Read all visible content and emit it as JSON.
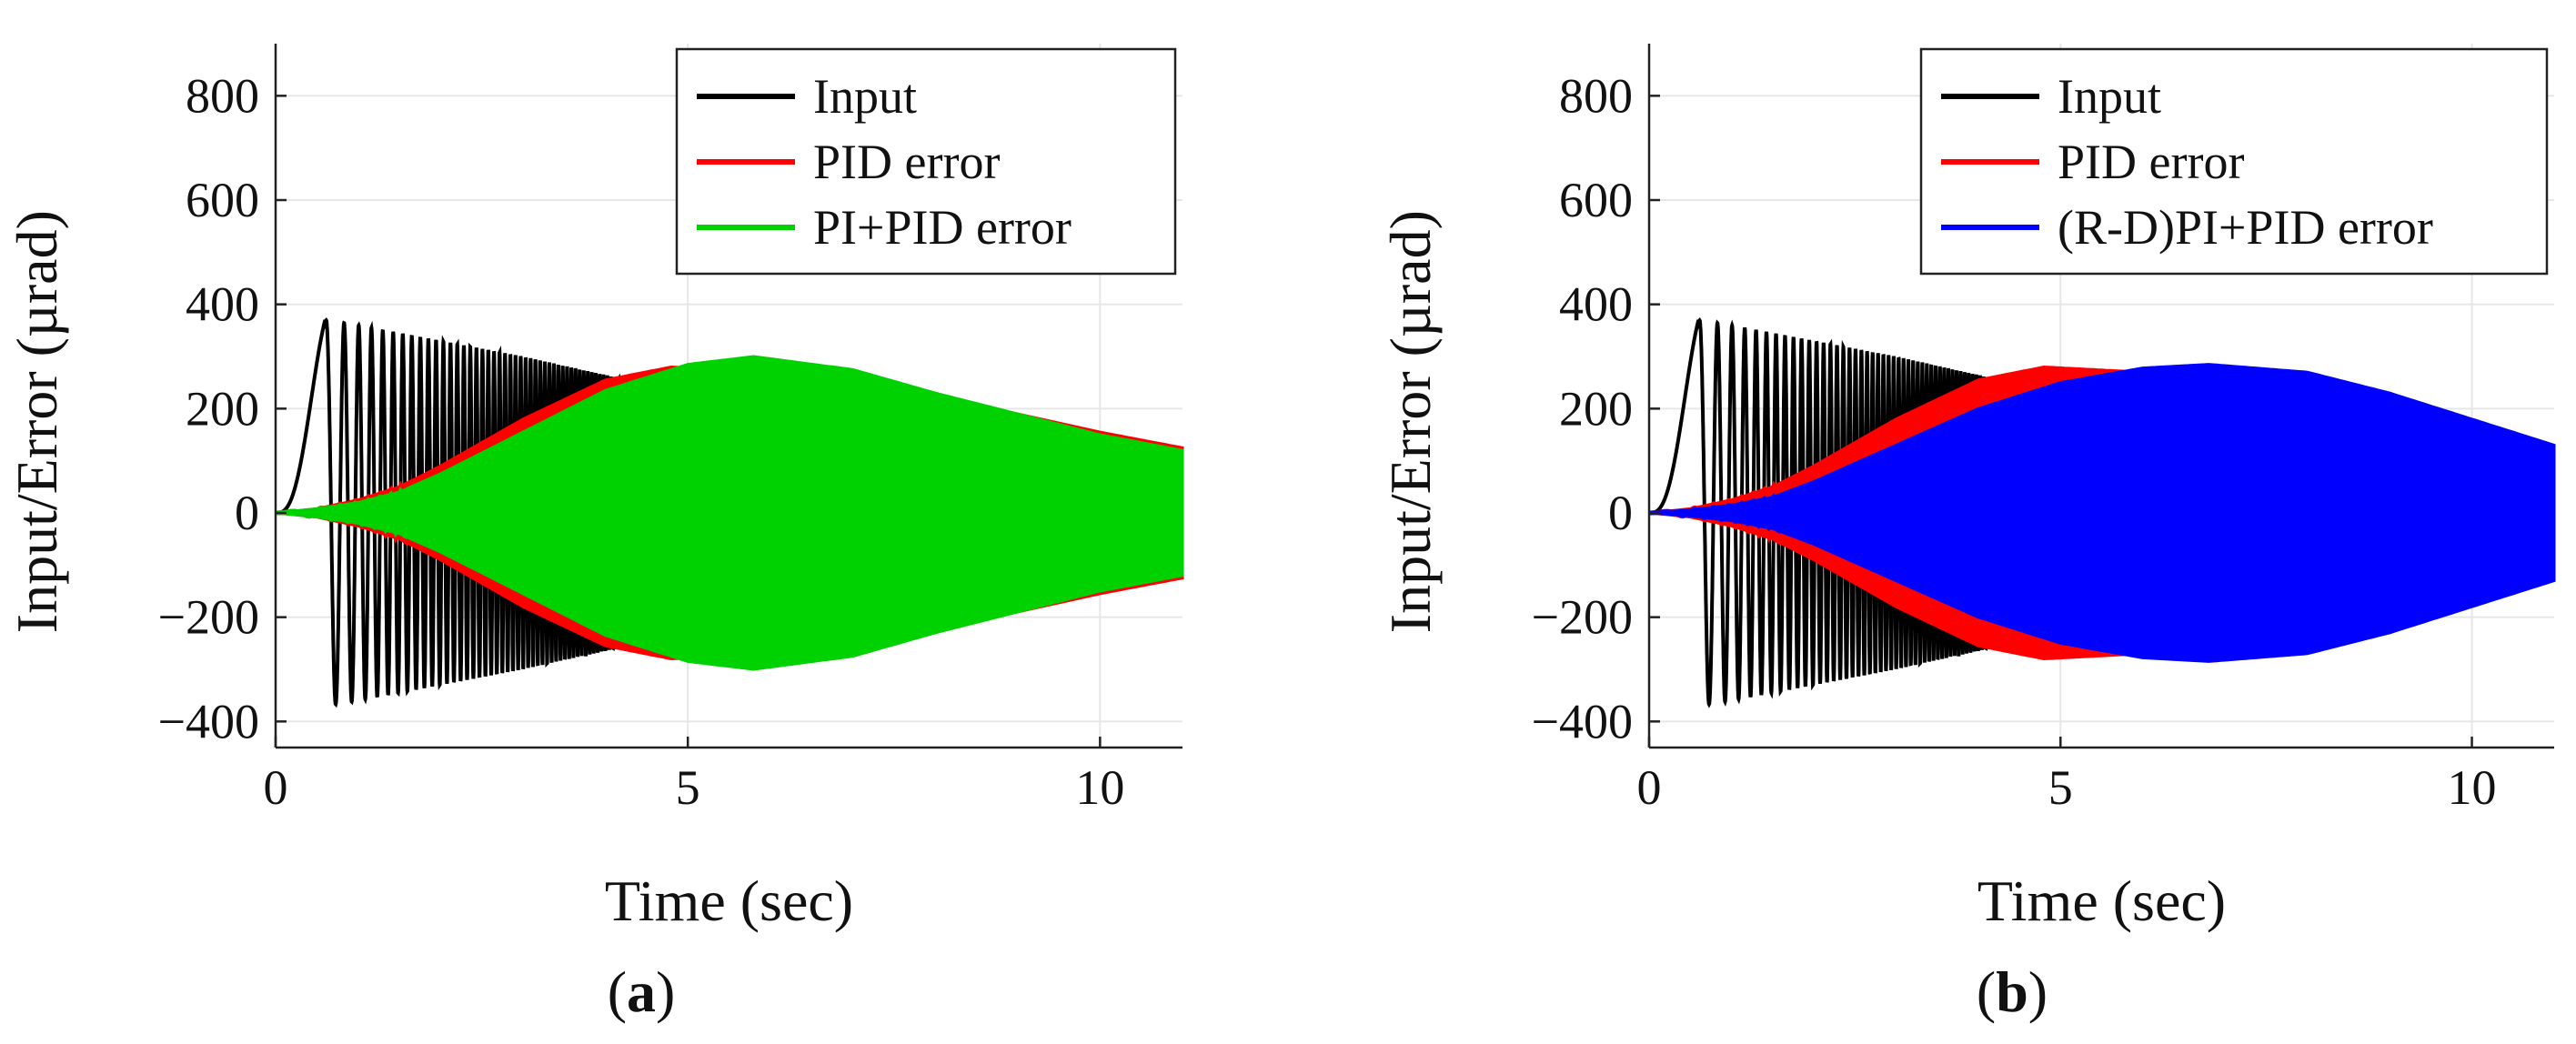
{
  "chart_data": [
    {
      "id": "a",
      "type": "line",
      "panel_label": {
        "open": "(",
        "letter": "a",
        "close": ")"
      },
      "xlabel": "Time (sec)",
      "ylabel": "Input/Error (µrad)",
      "xlim": [
        0,
        11
      ],
      "ylim": [
        -450,
        900
      ],
      "xticks": [
        0,
        5,
        10
      ],
      "yticks": [
        -400,
        -200,
        0,
        200,
        400,
        600,
        800
      ],
      "ytick_labels": [
        "−400",
        "−200",
        "0",
        "200",
        "400",
        "600",
        "800"
      ],
      "grid": true,
      "legend_position": "top-right",
      "series": [
        {
          "name": "Input",
          "color": "#000000",
          "description": "chirp input, rising then decaying amplitude",
          "envelope_t": [
            0,
            0.6,
            1.0,
            2.0,
            3.0,
            4.0,
            4.6
          ],
          "envelope_amp": [
            0,
            370,
            360,
            330,
            300,
            265,
            240
          ]
        },
        {
          "name": "PID error",
          "color": "#ff0000",
          "envelope_t": [
            0,
            0.5,
            1.0,
            1.5,
            2.0,
            3.0,
            4.0,
            4.8,
            6.0,
            7.0,
            8.0,
            9.0,
            10.0,
            11.0
          ],
          "envelope_amp": [
            0,
            8,
            25,
            50,
            90,
            180,
            255,
            280,
            270,
            250,
            220,
            190,
            155,
            125
          ]
        },
        {
          "name": "PI+PID error",
          "color": "#00d100",
          "envelope_t": [
            0,
            0.5,
            1.0,
            1.5,
            2.0,
            3.0,
            4.0,
            5.0,
            5.8,
            7.0,
            8.0,
            9.0,
            10.0,
            11.0
          ],
          "envelope_amp": [
            0,
            8,
            20,
            40,
            75,
            155,
            235,
            285,
            300,
            275,
            230,
            190,
            150,
            120
          ]
        }
      ]
    },
    {
      "id": "b",
      "type": "line",
      "panel_label": {
        "open": "(",
        "letter": "b",
        "close": ")"
      },
      "xlabel": "Time (sec)",
      "ylabel": "Input/Error (µrad)",
      "xlim": [
        0,
        11
      ],
      "ylim": [
        -450,
        900
      ],
      "xticks": [
        0,
        5,
        10
      ],
      "yticks": [
        -400,
        -200,
        0,
        200,
        400,
        600,
        800
      ],
      "ytick_labels": [
        "−400",
        "−200",
        "0",
        "200",
        "400",
        "600",
        "800"
      ],
      "grid": true,
      "legend_position": "top-right",
      "series": [
        {
          "name": "Input",
          "color": "#000000",
          "envelope_t": [
            0,
            0.6,
            1.0,
            2.0,
            3.0,
            4.0,
            4.6
          ],
          "envelope_amp": [
            0,
            370,
            360,
            330,
            300,
            265,
            240
          ]
        },
        {
          "name": "PID error",
          "color": "#ff0000",
          "envelope_t": [
            0,
            0.5,
            1.0,
            1.5,
            2.0,
            3.0,
            4.0,
            4.8,
            6.0,
            7.0,
            8.0,
            9.0,
            10.0,
            11.0
          ],
          "envelope_amp": [
            0,
            8,
            25,
            50,
            90,
            180,
            255,
            280,
            270,
            250,
            220,
            190,
            155,
            125
          ]
        },
        {
          "name": "(R-D)PI+PID error",
          "color": "#0000ff",
          "envelope_t": [
            0,
            0.5,
            1.0,
            1.5,
            2.0,
            3.0,
            4.0,
            5.0,
            6.0,
            6.8,
            8.0,
            9.0,
            10.0,
            11.0
          ],
          "envelope_amp": [
            0,
            6,
            15,
            30,
            60,
            130,
            200,
            250,
            278,
            285,
            270,
            230,
            180,
            130
          ]
        }
      ]
    }
  ]
}
